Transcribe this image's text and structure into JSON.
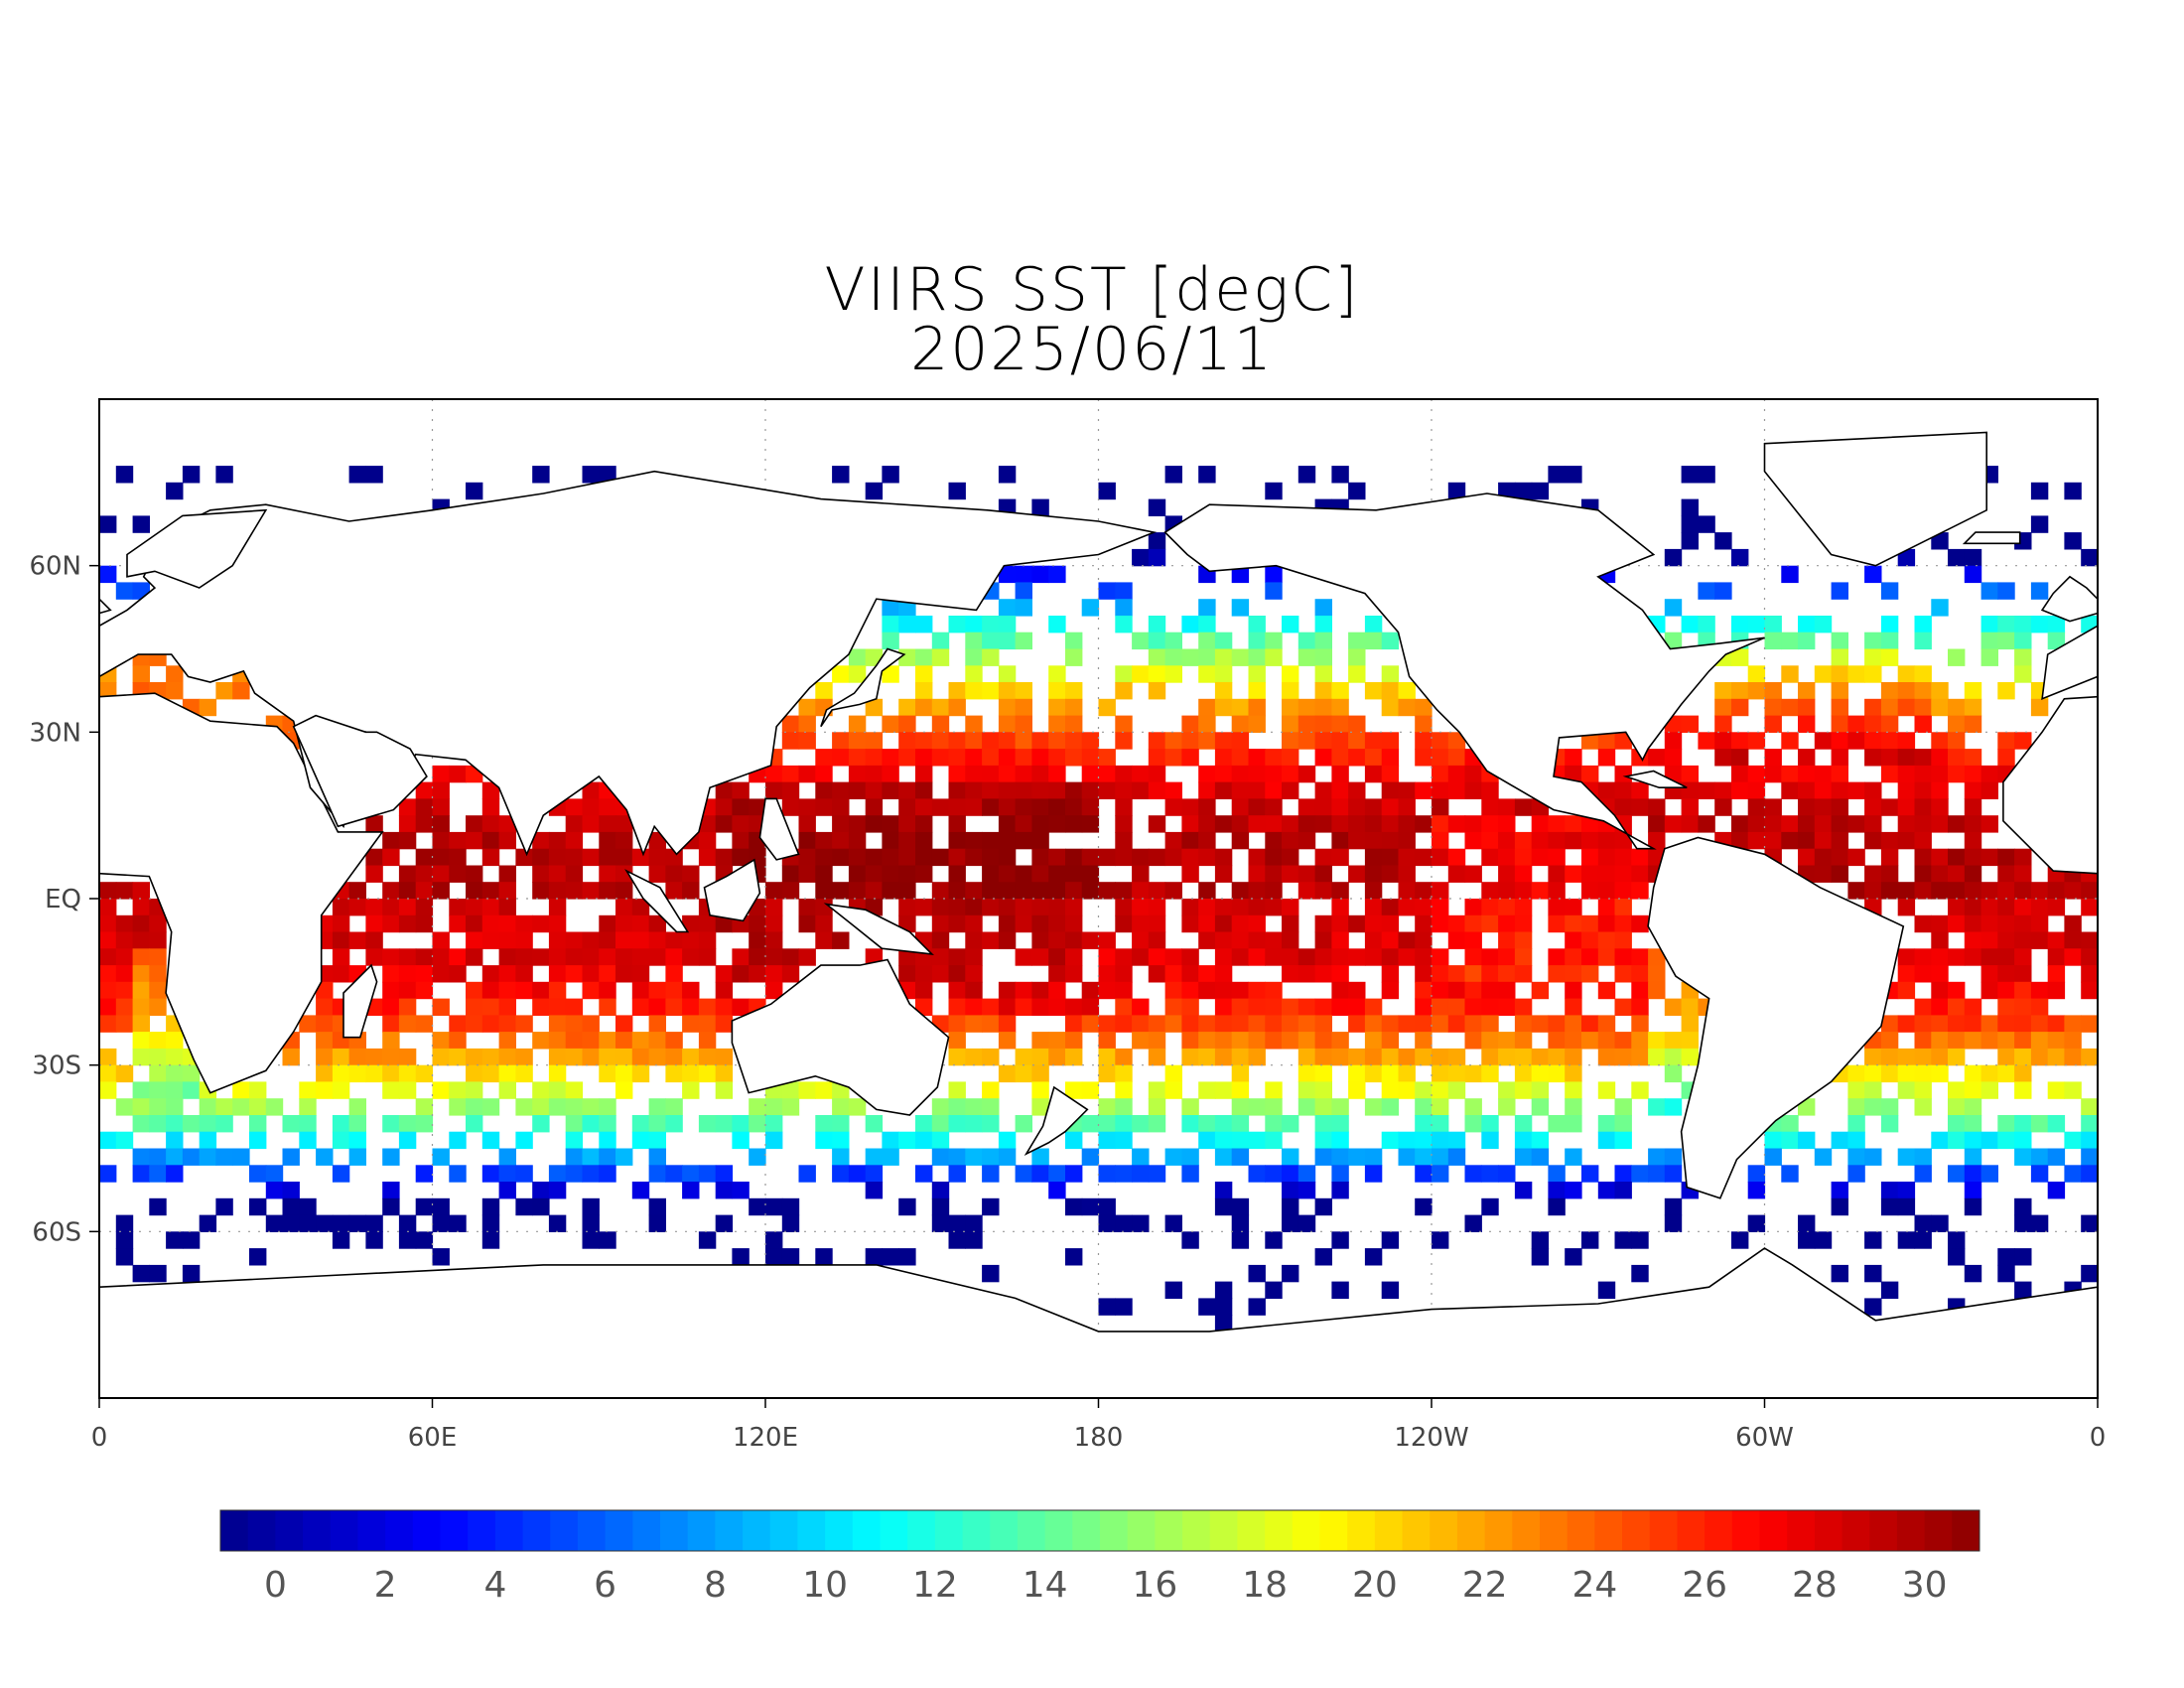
{
  "title": {
    "line1": "VIIRS SST [degC]",
    "line2": "2025/06/11"
  },
  "map": {
    "variable": "sea surface temperature",
    "units": "degC",
    "lon_ticks": [
      "0",
      "60E",
      "120E",
      "180",
      "120W",
      "60W",
      "0"
    ],
    "lat_ticks": [
      "60N",
      "30N",
      "EQ",
      "30S",
      "60S"
    ],
    "grid": "dotted",
    "land_color": "#ffffff",
    "missing_color": "#ffffff",
    "coastline_color": "#000000"
  },
  "colorbar": {
    "min": -1,
    "max": 31,
    "step": 0.5,
    "tick_labels": [
      "0",
      "2",
      "4",
      "6",
      "8",
      "10",
      "12",
      "14",
      "16",
      "18",
      "20",
      "22",
      "24",
      "26",
      "28",
      "30"
    ],
    "colormap": [
      "#00008b",
      "#0000ff",
      "#0080ff",
      "#00ffff",
      "#7fff7f",
      "#ffff00",
      "#ff8000",
      "#ff0000",
      "#8b0000"
    ]
  }
}
